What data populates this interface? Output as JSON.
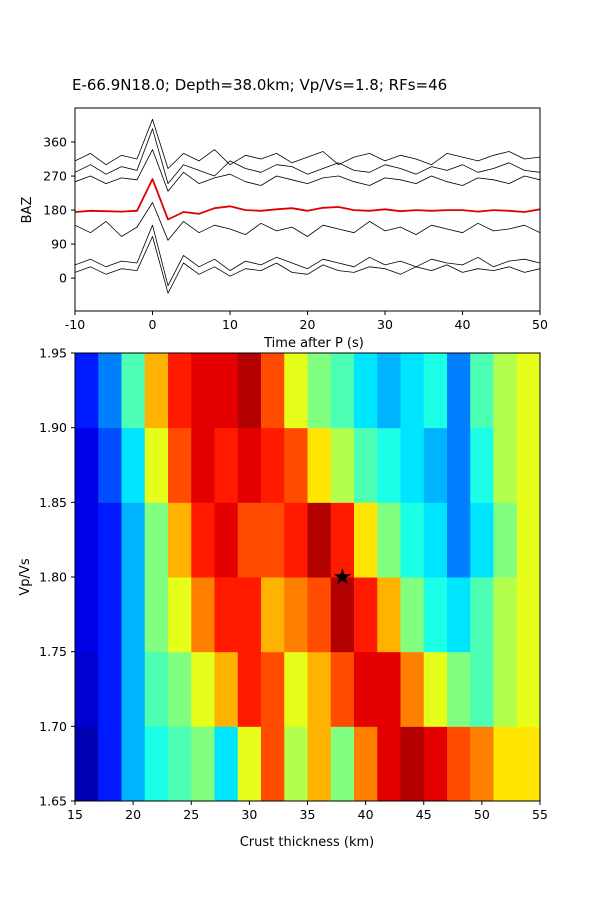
{
  "chart_data": [
    {
      "type": "line",
      "title": "E-66.9N18.0; Depth=38.0km; Vp/Vs=1.8; RFs=46",
      "x_label": "Time after P (s)",
      "y_label": "BAZ",
      "x": [
        -10,
        -8,
        -6,
        -4,
        -2,
        0,
        2,
        4,
        6,
        8,
        10,
        12,
        14,
        16,
        18,
        20,
        22,
        24,
        26,
        28,
        30,
        32,
        34,
        36,
        38,
        40,
        42,
        44,
        46,
        48,
        50
      ],
      "xlim": [
        -10,
        50
      ],
      "ylim": [
        -87,
        450
      ],
      "xticks": [
        -10,
        0,
        10,
        20,
        30,
        40,
        50
      ],
      "yticks": [
        0,
        90,
        180,
        270,
        360
      ],
      "series": [
        {
          "color": "#000000",
          "values": [
            310,
            330,
            300,
            325,
            315,
            420,
            290,
            330,
            310,
            340,
            300,
            325,
            315,
            330,
            305,
            320,
            335,
            300,
            320,
            330,
            310,
            325,
            315,
            300,
            330,
            320,
            310,
            325,
            335,
            315,
            320
          ]
        },
        {
          "color": "#000000",
          "values": [
            280,
            300,
            275,
            295,
            285,
            395,
            250,
            300,
            285,
            270,
            310,
            290,
            280,
            300,
            295,
            275,
            290,
            305,
            285,
            280,
            300,
            290,
            275,
            295,
            285,
            300,
            280,
            290,
            305,
            285,
            280
          ]
        },
        {
          "color": "#000000",
          "values": [
            255,
            270,
            250,
            265,
            260,
            340,
            230,
            280,
            250,
            265,
            275,
            255,
            245,
            270,
            260,
            250,
            265,
            270,
            255,
            245,
            265,
            260,
            250,
            270,
            255,
            245,
            265,
            260,
            250,
            270,
            260
          ]
        },
        {
          "color": "#000000",
          "values": [
            140,
            120,
            150,
            110,
            135,
            200,
            100,
            150,
            120,
            140,
            130,
            115,
            145,
            125,
            135,
            110,
            140,
            130,
            120,
            150,
            125,
            135,
            115,
            140,
            130,
            120,
            145,
            125,
            130,
            140,
            120
          ]
        },
        {
          "color": "#000000",
          "values": [
            35,
            50,
            30,
            45,
            40,
            140,
            -20,
            60,
            30,
            50,
            20,
            45,
            35,
            55,
            40,
            25,
            50,
            40,
            30,
            55,
            35,
            45,
            30,
            50,
            40,
            35,
            55,
            30,
            45,
            50,
            40
          ]
        },
        {
          "color": "#000000",
          "values": [
            15,
            30,
            10,
            25,
            20,
            110,
            -40,
            40,
            10,
            30,
            5,
            25,
            20,
            40,
            15,
            10,
            35,
            20,
            15,
            30,
            25,
            10,
            30,
            20,
            35,
            15,
            25,
            20,
            30,
            15,
            25
          ]
        },
        {
          "color": "#e00000",
          "values": [
            175,
            178,
            177,
            176,
            178,
            262,
            155,
            175,
            170,
            185,
            190,
            180,
            178,
            182,
            185,
            178,
            186,
            188,
            180,
            178,
            182,
            177,
            180,
            178,
            180,
            180,
            176,
            180,
            178,
            175,
            182
          ]
        }
      ]
    },
    {
      "type": "heatmap",
      "x_label": "Crust thickness (km)",
      "y_label": "Vp/Vs",
      "x": [
        16,
        18,
        20,
        22,
        24,
        26,
        28,
        30,
        32,
        34,
        36,
        38,
        40,
        42,
        44,
        46,
        48,
        50,
        52,
        54
      ],
      "y": [
        1.675,
        1.725,
        1.775,
        1.825,
        1.875,
        1.925
      ],
      "xlim": [
        15,
        55
      ],
      "ylim": [
        1.65,
        1.95
      ],
      "xticks": [
        15,
        20,
        25,
        30,
        35,
        40,
        45,
        50,
        55
      ],
      "yticks": [
        {
          "value": 1.65,
          "label": "1.65"
        },
        {
          "value": 1.7,
          "label": "1.70"
        },
        {
          "value": 1.75,
          "label": "1.75"
        },
        {
          "value": 1.8,
          "label": "1.80"
        },
        {
          "value": 1.85,
          "label": "1.85"
        },
        {
          "value": 1.9,
          "label": "1.90"
        },
        {
          "value": 1.95,
          "label": "1.95"
        }
      ],
      "values": [
        [
          0.05,
          0.15,
          0.3,
          0.4,
          0.45,
          0.5,
          0.35,
          0.6,
          0.8,
          0.55,
          0.7,
          0.5,
          0.75,
          0.9,
          0.95,
          0.9,
          0.8,
          0.75,
          0.65,
          0.65
        ],
        [
          0.08,
          0.15,
          0.3,
          0.45,
          0.5,
          0.6,
          0.7,
          0.85,
          0.8,
          0.6,
          0.7,
          0.8,
          0.9,
          0.9,
          0.75,
          0.6,
          0.5,
          0.45,
          0.55,
          0.6
        ],
        [
          0.1,
          0.15,
          0.3,
          0.5,
          0.6,
          0.75,
          0.85,
          0.85,
          0.7,
          0.75,
          0.8,
          0.95,
          0.85,
          0.7,
          0.5,
          0.4,
          0.35,
          0.45,
          0.55,
          0.6
        ],
        [
          0.1,
          0.15,
          0.3,
          0.5,
          0.7,
          0.85,
          0.9,
          0.8,
          0.8,
          0.85,
          0.95,
          0.85,
          0.65,
          0.5,
          0.4,
          0.35,
          0.25,
          0.35,
          0.5,
          0.6
        ],
        [
          0.1,
          0.2,
          0.35,
          0.6,
          0.8,
          0.9,
          0.85,
          0.9,
          0.85,
          0.8,
          0.65,
          0.55,
          0.45,
          0.4,
          0.35,
          0.3,
          0.25,
          0.4,
          0.55,
          0.6
        ],
        [
          0.15,
          0.25,
          0.45,
          0.7,
          0.85,
          0.9,
          0.9,
          0.95,
          0.8,
          0.6,
          0.5,
          0.45,
          0.35,
          0.3,
          0.35,
          0.4,
          0.25,
          0.45,
          0.55,
          0.6
        ]
      ],
      "marker": {
        "x": 38,
        "y": 1.8
      }
    }
  ]
}
